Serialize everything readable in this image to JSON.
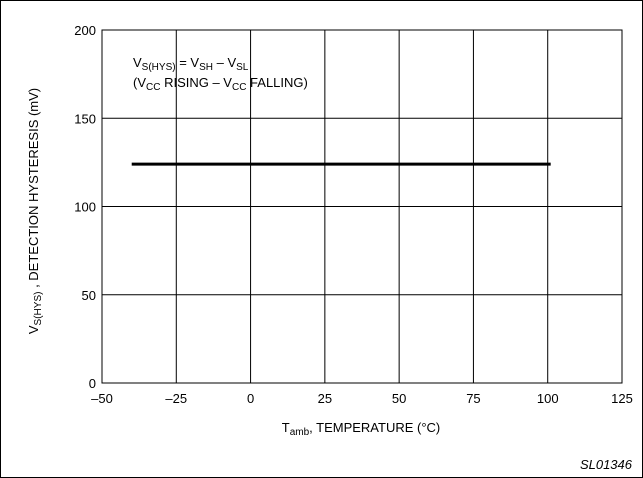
{
  "chart_data": {
    "type": "line",
    "xlabel_main": "T",
    "xlabel_sub": "amb",
    "xlabel_rest": ", TEMPERATURE (°C)",
    "ylabel_main": "V",
    "ylabel_sub": "S(HYS)",
    "ylabel_rest": " , DETECTION HYSTERESIS (mV)",
    "xlim": [
      -50,
      125
    ],
    "ylim": [
      0,
      200
    ],
    "x_ticks": [
      -50,
      -25,
      0,
      25,
      50,
      75,
      100,
      125
    ],
    "x_tick_labels": [
      "–50",
      "–25",
      "0",
      "25",
      "50",
      "75",
      "100",
      "125"
    ],
    "y_ticks": [
      0,
      50,
      100,
      150,
      200
    ],
    "y_tick_labels": [
      "0",
      "50",
      "100",
      "150",
      "200"
    ],
    "grid": true,
    "series": [
      {
        "x": [
          -40,
          101
        ],
        "y": [
          124,
          124
        ]
      }
    ],
    "annotations": {
      "line1": {
        "parts": [
          {
            "t": "V",
            "sub": false
          },
          {
            "t": "S(HYS)",
            "sub": true
          },
          {
            "t": " = V",
            "sub": false
          },
          {
            "t": "SH",
            "sub": true
          },
          {
            "t": " – V",
            "sub": false
          },
          {
            "t": "SL",
            "sub": true
          }
        ]
      },
      "line2": {
        "parts": [
          {
            "t": "(V",
            "sub": false
          },
          {
            "t": "CC",
            "sub": true
          },
          {
            "t": " RISING – V",
            "sub": false
          },
          {
            "t": "CC",
            "sub": true
          },
          {
            "t": " FALLING)",
            "sub": false
          }
        ]
      }
    },
    "figure_code": "SL01346"
  }
}
